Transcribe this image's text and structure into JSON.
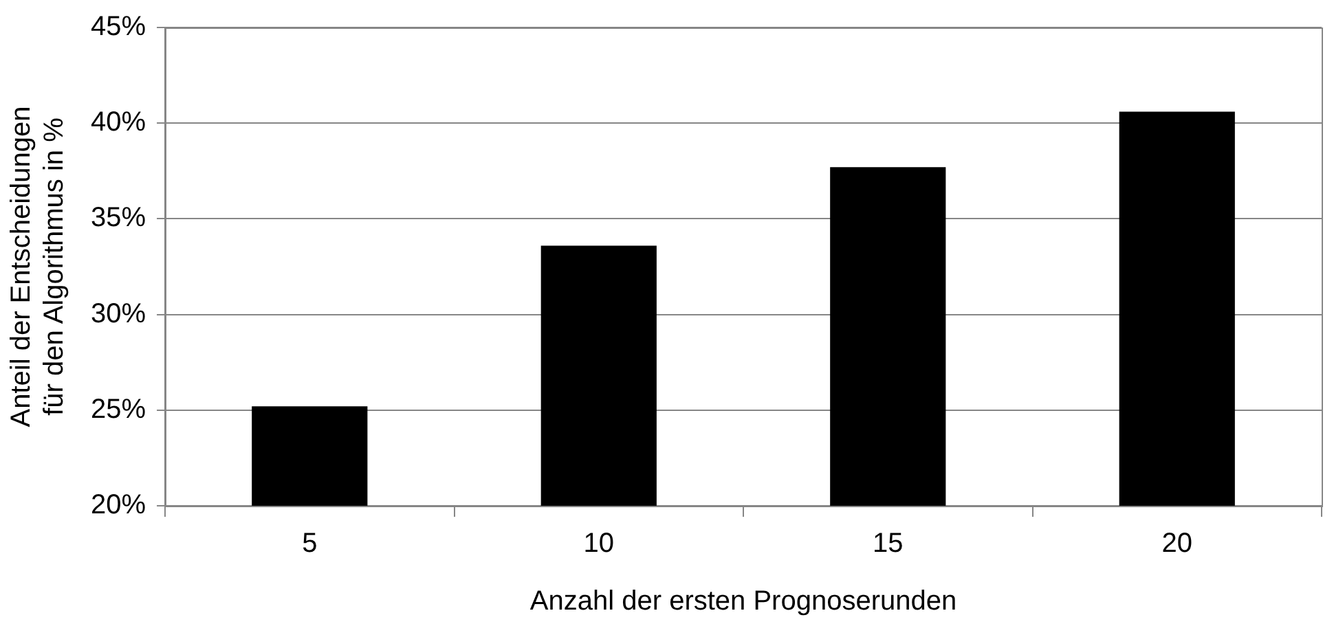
{
  "chart_data": {
    "type": "bar",
    "xlabel": "Anzahl der ersten Prognoserunden",
    "ylabel": "Anteil der Entscheidungen für den Algorithmus in %",
    "categories": [
      "5",
      "10",
      "15",
      "20"
    ],
    "values": [
      25.2,
      33.6,
      37.7,
      40.6
    ],
    "color": "#000000",
    "ylim": [
      20,
      45
    ],
    "yticks": [
      {
        "value": 20,
        "label": "20%"
      },
      {
        "value": 25,
        "label": "25%"
      },
      {
        "value": 30,
        "label": "30%"
      },
      {
        "value": 35,
        "label": "35%"
      },
      {
        "value": 40,
        "label": "40%"
      },
      {
        "value": 45,
        "label": "45%"
      }
    ],
    "grid": "y",
    "legend": false
  }
}
